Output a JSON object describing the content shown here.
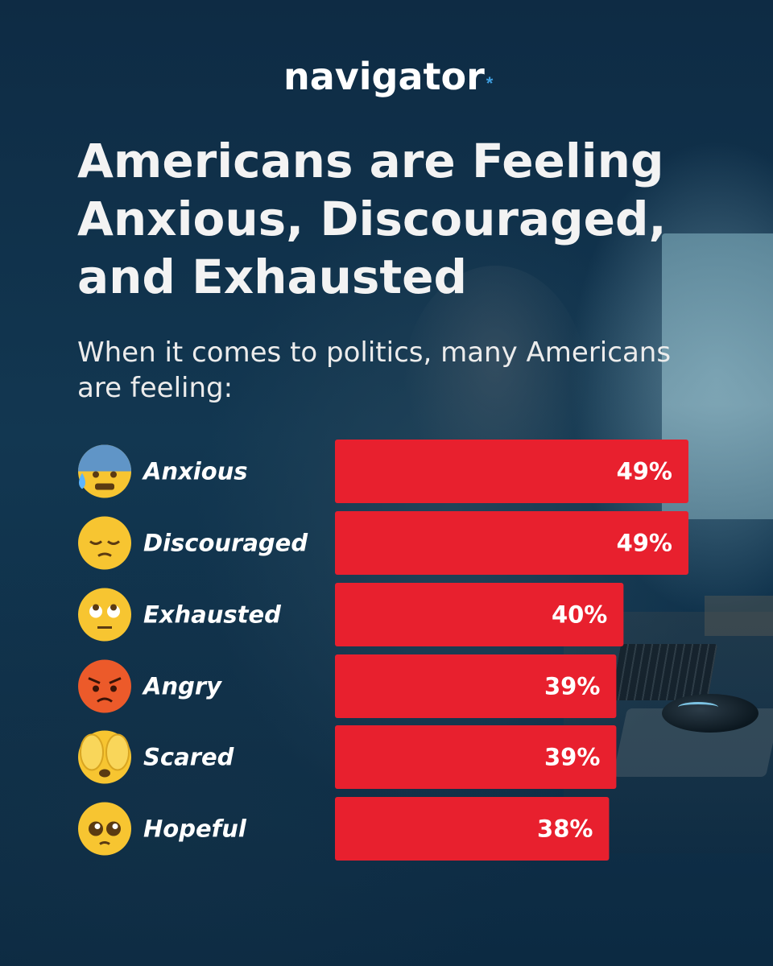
{
  "brand": {
    "name": "navigator",
    "mark": "*"
  },
  "colors": {
    "bar": "#e8202e",
    "text": "#ffffff",
    "background": "#0d2c44",
    "accent": "#3f9fe0"
  },
  "chart_data": {
    "type": "bar",
    "orientation": "horizontal",
    "title": "Americans are Feeling Anxious, Discouraged, and Exhausted",
    "subtitle": "When it comes to politics, many Americans are feeling:",
    "categories": [
      "Anxious",
      "Discouraged",
      "Exhausted",
      "Angry",
      "Scared",
      "Hopeful"
    ],
    "values": [
      49,
      49,
      40,
      39,
      39,
      38
    ],
    "value_labels": [
      "49%",
      "49%",
      "40%",
      "39%",
      "39%",
      "38%"
    ],
    "icons": [
      "anxious-sweat-face-icon",
      "pensive-face-icon",
      "rolling-eyes-face-icon",
      "angry-face-icon",
      "hands-over-eyes-face-icon",
      "pleading-face-icon"
    ],
    "unit": "%",
    "xlim": [
      0,
      49
    ],
    "grid": false,
    "legend": "none",
    "xlabel": "",
    "ylabel": ""
  }
}
